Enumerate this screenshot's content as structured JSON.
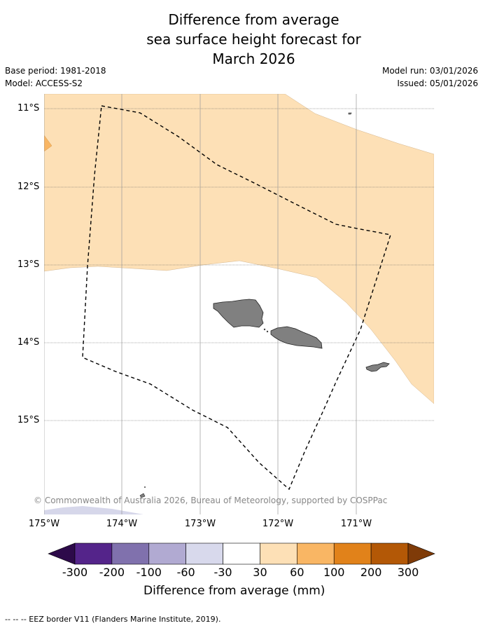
{
  "title": {
    "line1": "Difference from average",
    "line2": "sea surface height forecast for",
    "line3": "March 2026"
  },
  "meta": {
    "base_period": "Base period: 1981-2018",
    "model": "Model: ACCESS-S2",
    "model_run": "Model run: 03/01/2026",
    "issued": "Issued: 05/01/2026"
  },
  "map": {
    "region": "Samoa",
    "lat_labels": [
      "11°S",
      "12°S",
      "13°S",
      "14°S",
      "15°S"
    ],
    "lon_labels": [
      "175°W",
      "174°W",
      "173°W",
      "172°W",
      "171°W"
    ],
    "copyright": "© Commonwealth of Australia 2026, Bureau of Meteorology, supported by COSPPac",
    "colors": {
      "band_30_60": "#fde0b6",
      "band_60_100": "#f9b664",
      "band_minus60_minus30": "#d6d7ea",
      "land": "#808080",
      "eez_border": "#000000"
    }
  },
  "colorbar": {
    "ticks": [
      "-300",
      "-200",
      "-100",
      "-60",
      "-30",
      "30",
      "60",
      "100",
      "200",
      "300"
    ],
    "colors": [
      "#2d0a4a",
      "#54248a",
      "#8071ad",
      "#b1aad2",
      "#d8d9ec",
      "#ffffff",
      "#fde0b6",
      "#f9b664",
      "#e1821a",
      "#b35806",
      "#7f3b08"
    ],
    "label": "Difference from average (mm)"
  },
  "footer": "--  --  -- EEZ border V11 (Flanders Marine Institute, 2019)."
}
